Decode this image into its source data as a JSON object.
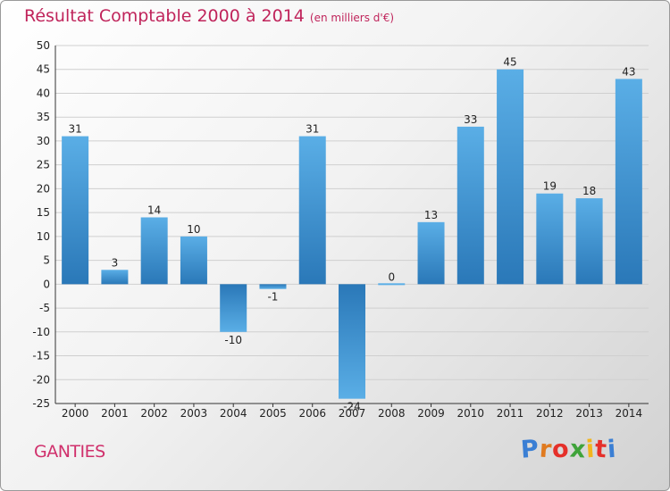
{
  "header": {
    "title": "Résultat Comptable 2000 à 2014",
    "subtitle": "(en milliers d'€)"
  },
  "commune": "GANTIES",
  "logo": {
    "text": "Proxiti",
    "letters": [
      "P",
      "r",
      "o",
      "x",
      "i",
      "t",
      "i"
    ],
    "colors": [
      "#3b7fd4",
      "#e07a1f",
      "#e5302a",
      "#3fa33a",
      "#f2b51d",
      "#e5302a",
      "#3b7fd4"
    ]
  },
  "colors": {
    "bar_light": "#5aaee6",
    "bar_dark": "#2a78b8",
    "grid": "#cfcfcf"
  },
  "chart_data": {
    "type": "bar",
    "title": "Résultat Comptable 2000 à 2014",
    "subtitle": "(en milliers d'€)",
    "xlabel": "",
    "ylabel": "",
    "categories": [
      "2000",
      "2001",
      "2002",
      "2003",
      "2004",
      "2005",
      "2006",
      "2007",
      "2008",
      "2009",
      "2010",
      "2011",
      "2012",
      "2013",
      "2014"
    ],
    "values": [
      31,
      3,
      14,
      10,
      -10,
      -1,
      31,
      -24,
      0,
      13,
      33,
      45,
      19,
      18,
      43
    ],
    "ylim": [
      -25,
      50
    ],
    "yticks": [
      50,
      45,
      40,
      35,
      30,
      25,
      20,
      15,
      10,
      5,
      0,
      -5,
      -10,
      -15,
      -20,
      -25
    ],
    "grid": true
  }
}
